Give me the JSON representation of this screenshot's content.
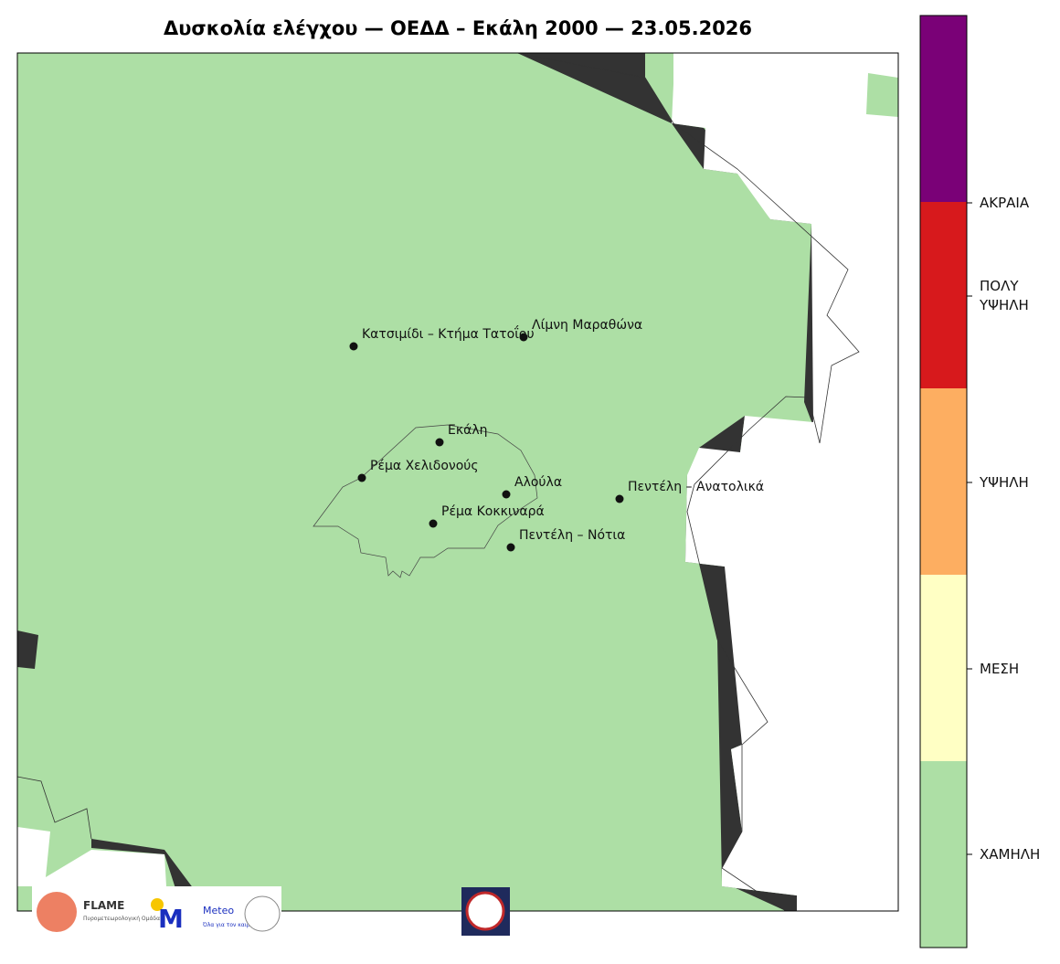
{
  "title": "Δυσκολία ελέγχου — ΟΕΔΔ – Εκάλη 2000 — 23.05.2026",
  "places": [
    "Κατσιμίδι – Κτήμα Τατοΐου",
    "Λίμνη Μαραθώνα",
    "Εκάλη",
    "Ρέμα Χελιδονούς",
    "Αλούλα",
    "Πεντέλη – Ανατολικά",
    "Ρέμα Κοκκιναρά",
    "Πεντέλη – Νότια"
  ],
  "legend": {
    "colors": [
      "#7a0177",
      "#d7191c",
      "#fdae61",
      "#ffffc4",
      "#addfa5"
    ],
    "labels": [
      "ΑΚΡΑΙΑ",
      "ΠΟΛΥ ΥΨΗΛΗ",
      "ΥΨΗΛΗ",
      "ΜΕΣΗ",
      "ΧΑΜΗΛΗ"
    ]
  },
  "logos": {
    "flame": "FLAME",
    "flame_sub": "Πυρομετεωρολογική Ομάδα",
    "meteo": "Meteo",
    "meteo_sub": "Όλα για τον καιρό"
  }
}
